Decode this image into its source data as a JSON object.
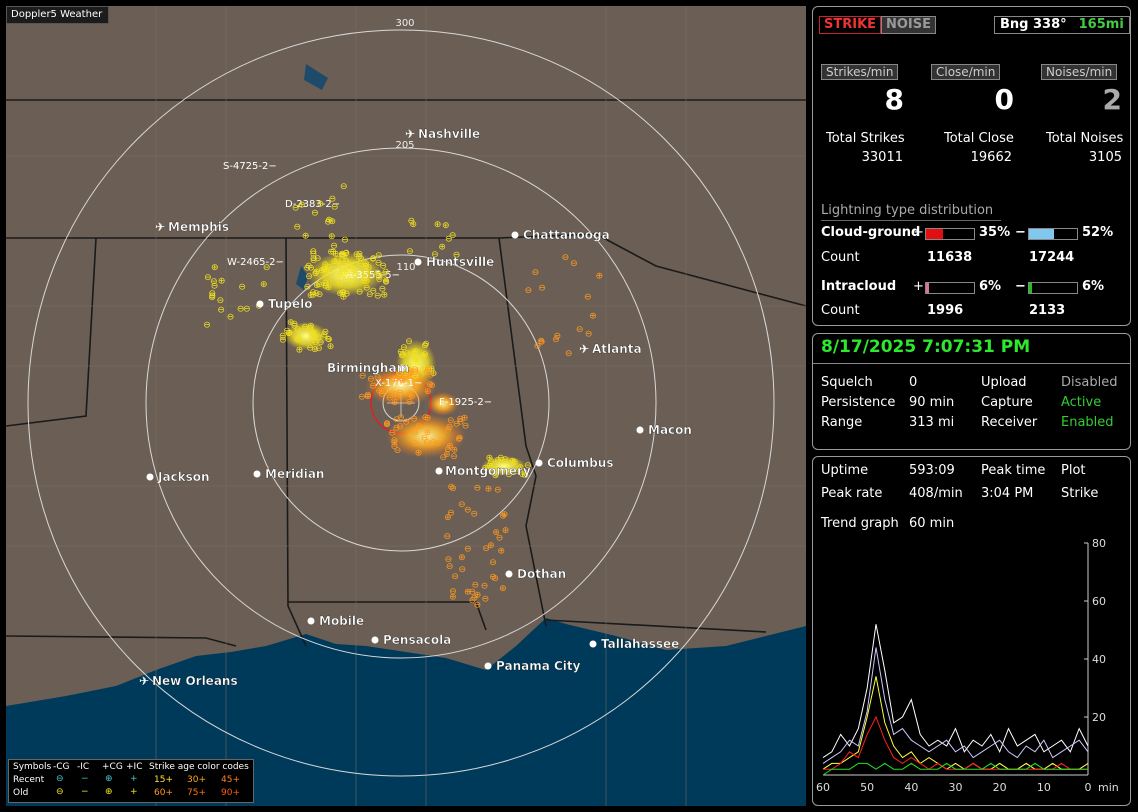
{
  "app": {
    "title": "Doppler5 Weather"
  },
  "map": {
    "ring_labels": [
      {
        "value": "300"
      },
      {
        "value": "205"
      },
      {
        "value": "110"
      }
    ],
    "cities": [
      {
        "name": "Nashville",
        "type": "airport"
      },
      {
        "name": "Memphis",
        "type": "airport"
      },
      {
        "name": "Chattanooga",
        "type": "city"
      },
      {
        "name": "Huntsville",
        "type": "city"
      },
      {
        "name": "Tupelo",
        "type": "city"
      },
      {
        "name": "Atlanta",
        "type": "airport"
      },
      {
        "name": "Birmingham",
        "type": "city"
      },
      {
        "name": "Macon",
        "type": "city"
      },
      {
        "name": "Jackson",
        "type": "city"
      },
      {
        "name": "Meridian",
        "type": "city"
      },
      {
        "name": "Montgomery",
        "type": "city"
      },
      {
        "name": "Columbus",
        "type": "city"
      },
      {
        "name": "Dothan",
        "type": "city"
      },
      {
        "name": "Mobile",
        "type": "city"
      },
      {
        "name": "Pensacola",
        "type": "city"
      },
      {
        "name": "Tallahassee",
        "type": "city"
      },
      {
        "name": "Panama City",
        "type": "city"
      },
      {
        "name": "New Orleans",
        "type": "airport"
      }
    ],
    "storm_tags": [
      "S-4725-2",
      "D-2383-2",
      "W-2465-2",
      "A-3555-5",
      "X-176-1",
      "F-1925-2"
    ]
  },
  "legend": {
    "symbols_label": "Symbols",
    "headers": [
      "-CG",
      "-IC",
      "+CG",
      "+IC"
    ],
    "age_label": "Strike age color codes",
    "rows": [
      {
        "label": "Recent",
        "ages": [
          "15+",
          "30+",
          "45+"
        ]
      },
      {
        "label": "Old",
        "ages": [
          "60+",
          "75+",
          "90+"
        ]
      }
    ],
    "colors": {
      "recent": "#40c8d0",
      "old": "#f0e020",
      "age15": "#ffe040",
      "age30": "#ffa820",
      "age45": "#ff8020",
      "age60": "#ff9a20",
      "age75": "#ff7010",
      "age90": "#ff5a10"
    }
  },
  "stats": {
    "strike_btn": "STRIKE",
    "noise_btn": "NOISE",
    "bng_label": "Bng 338°",
    "bng_value": "165mi",
    "strikes_per_min_label": "Strikes/min",
    "close_per_min_label": "Close/min",
    "noises_per_min_label": "Noises/min",
    "strikes_per_min": "8",
    "close_per_min": "0",
    "noises_per_min": "2",
    "total_strikes_label": "Total Strikes",
    "total_close_label": "Total Close",
    "total_noises_label": "Total Noises",
    "total_strikes": "33011",
    "total_close": "19662",
    "total_noises": "3105",
    "dist_title": "Lightning type distribution",
    "cloud_ground_label": "Cloud-ground",
    "intracloud_label": "Intracloud",
    "plus": "+",
    "minus": "−",
    "cg_plus_pct": "35%",
    "cg_minus_pct": "52%",
    "count_label": "Count",
    "cg_plus_count": "11638",
    "cg_minus_count": "17244",
    "ic_plus_pct": "6%",
    "ic_minus_pct": "6%",
    "ic_plus_count": "1996",
    "ic_minus_count": "2133",
    "cg_plus_fraction": 0.35,
    "cg_minus_fraction": 0.52,
    "ic_plus_fraction": 0.06,
    "ic_minus_fraction": 0.06,
    "cg_plus_color": "#e01010",
    "cg_minus_color": "#80c8f0",
    "ic_plus_color": "#e070a0",
    "ic_minus_color": "#20c020"
  },
  "status": {
    "datetime": "8/17/2025 7:07:31 PM",
    "squelch_label": "Squelch",
    "squelch": "0",
    "persistence_label": "Persistence",
    "persistence": "90 min",
    "range_label": "Range",
    "range": "313 mi",
    "upload_label": "Upload",
    "upload": "Disabled",
    "capture_label": "Capture",
    "capture": "Active",
    "receiver_label": "Receiver",
    "receiver": "Enabled"
  },
  "trend": {
    "uptime_label": "Uptime",
    "uptime": "593:09",
    "peak_time_label": "Peak time",
    "peak_time": "3:04 PM",
    "plot_label": "Plot",
    "peak_rate_label": "Peak rate",
    "peak_rate": "408/min",
    "plot_value": "Strike",
    "trend_graph_label": "Trend graph",
    "trend_graph_value": "60 min",
    "y_ticks": [
      "80",
      "60",
      "40",
      "20"
    ],
    "x_ticks": [
      "60",
      "50",
      "40",
      "30",
      "20",
      "10",
      "0"
    ],
    "x_unit": "min"
  },
  "chart_data": {
    "type": "line",
    "x": [
      60,
      58,
      56,
      54,
      52,
      50,
      48,
      46,
      44,
      42,
      40,
      38,
      36,
      34,
      32,
      30,
      28,
      26,
      24,
      22,
      20,
      18,
      16,
      14,
      12,
      10,
      8,
      6,
      4,
      2,
      0
    ],
    "xlim": [
      60,
      0
    ],
    "ylim": [
      0,
      80
    ],
    "series": [
      {
        "color": "#ffffff",
        "values": [
          6,
          8,
          14,
          10,
          16,
          30,
          52,
          36,
          18,
          20,
          26,
          14,
          10,
          12,
          10,
          16,
          8,
          12,
          10,
          14,
          8,
          16,
          10,
          12,
          14,
          8,
          10,
          12,
          8,
          16,
          10
        ]
      },
      {
        "color": "#c8c8ff",
        "values": [
          4,
          6,
          8,
          12,
          10,
          22,
          44,
          26,
          14,
          16,
          12,
          10,
          8,
          10,
          12,
          8,
          10,
          6,
          8,
          10,
          12,
          8,
          6,
          10,
          8,
          12,
          6,
          8,
          10,
          12,
          8
        ]
      },
      {
        "color": "#ffff40",
        "values": [
          2,
          4,
          4,
          6,
          8,
          20,
          34,
          18,
          10,
          6,
          8,
          4,
          6,
          4,
          2,
          4,
          2,
          4,
          2,
          2,
          4,
          2,
          2,
          4,
          2,
          2,
          4,
          2,
          2,
          2,
          4
        ]
      },
      {
        "color": "#ff2020",
        "values": [
          2,
          2,
          4,
          8,
          6,
          14,
          20,
          12,
          6,
          4,
          6,
          4,
          2,
          4,
          2,
          2,
          2,
          4,
          2,
          2,
          2,
          2,
          2,
          2,
          2,
          2,
          2,
          4,
          2,
          2,
          2
        ]
      },
      {
        "color": "#20e020",
        "values": [
          0,
          2,
          2,
          2,
          4,
          4,
          2,
          4,
          2,
          2,
          4,
          2,
          2,
          2,
          4,
          2,
          2,
          2,
          2,
          4,
          2,
          2,
          2,
          2,
          4,
          2,
          2,
          2,
          2,
          2,
          2
        ]
      }
    ]
  }
}
